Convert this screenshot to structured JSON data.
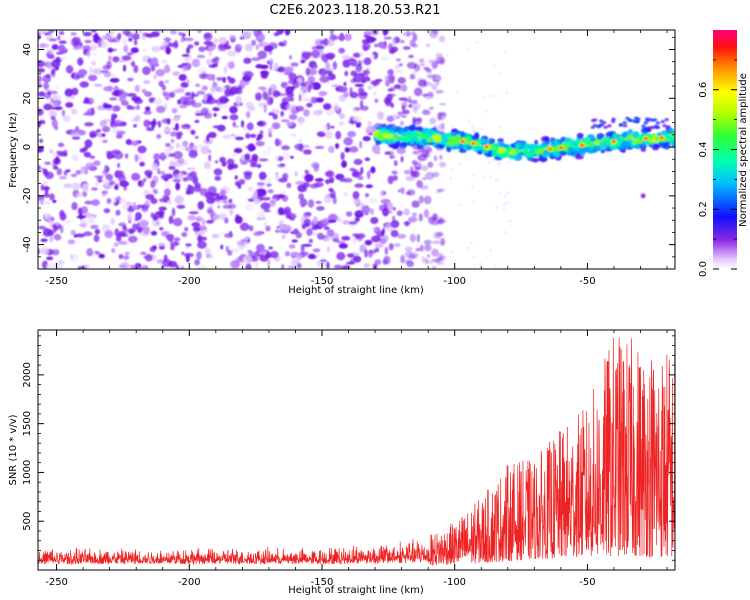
{
  "title": "C2E6.2023.118.20.53.R21",
  "chart_data": [
    {
      "type": "heatmap",
      "title": "C2E6.2023.118.20.53.R21",
      "xlabel": "Height of straight line (km)",
      "ylabel": "Frequency (Hz)",
      "xlim": [
        -257,
        -17
      ],
      "ylim": [
        -50,
        48
      ],
      "x_ticks": [
        -250,
        -200,
        -150,
        -100,
        -50
      ],
      "y_ticks": [
        -40,
        -20,
        0,
        20,
        40
      ],
      "noise_region_x": [
        -257,
        -104
      ],
      "signal_band": {
        "x_start": -130,
        "x_end": -17,
        "center_hz": [
          {
            "x": -130,
            "y": 5
          },
          {
            "x": -110,
            "y": 4
          },
          {
            "x": -95,
            "y": 2
          },
          {
            "x": -80,
            "y": -2
          },
          {
            "x": -65,
            "y": -1
          },
          {
            "x": -50,
            "y": 1
          },
          {
            "x": -35,
            "y": 3
          },
          {
            "x": -20,
            "y": 4
          }
        ],
        "half_width_hz": 4
      },
      "colorbar": {
        "label": "Normalized spectral amplitude",
        "range": [
          0,
          0.8
        ],
        "ticks": [
          0.0,
          0.2,
          0.4,
          0.6
        ]
      }
    },
    {
      "type": "line",
      "xlabel": "Height of straight line (km)",
      "ylabel": "SNR (10 * v/v)",
      "xlim": [
        -257,
        -17
      ],
      "ylim": [
        0,
        2460
      ],
      "x_ticks": [
        -250,
        -200,
        -150,
        -100,
        -50
      ],
      "y_ticks": [
        500,
        1000,
        1500,
        2000
      ],
      "color": "#ee2222",
      "envelope": [
        {
          "x": -257,
          "baseline": 100,
          "peak": 240
        },
        {
          "x": -150,
          "baseline": 100,
          "peak": 240
        },
        {
          "x": -110,
          "baseline": 110,
          "peak": 350
        },
        {
          "x": -100,
          "baseline": 120,
          "peak": 500
        },
        {
          "x": -90,
          "baseline": 130,
          "peak": 750
        },
        {
          "x": -80,
          "baseline": 150,
          "peak": 1100
        },
        {
          "x": -70,
          "baseline": 170,
          "peak": 1150
        },
        {
          "x": -60,
          "baseline": 180,
          "peak": 1450
        },
        {
          "x": -50,
          "baseline": 200,
          "peak": 1700
        },
        {
          "x": -40,
          "baseline": 200,
          "peak": 2460
        },
        {
          "x": -30,
          "baseline": 200,
          "peak": 2350
        },
        {
          "x": -17,
          "baseline": 180,
          "peak": 2300
        }
      ]
    }
  ]
}
